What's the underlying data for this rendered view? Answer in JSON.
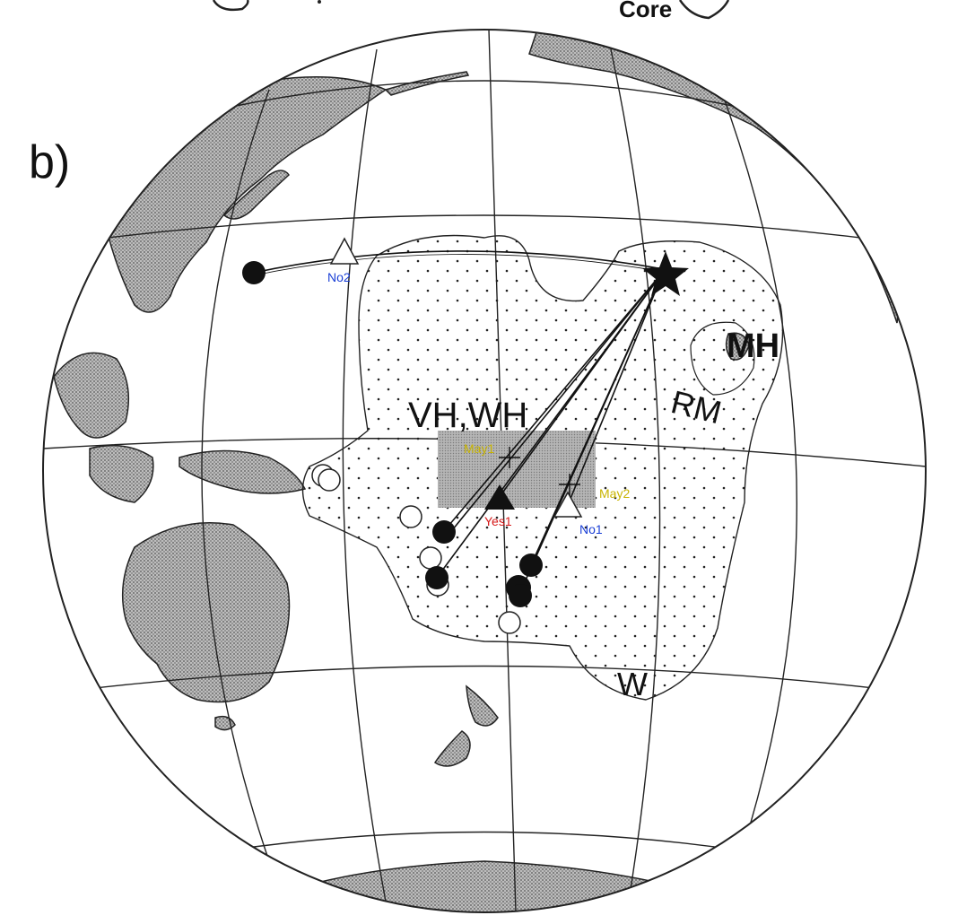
{
  "figure": {
    "panel_label": "b)",
    "top_clipped_text": "Core"
  },
  "regions": {
    "vh_wh": "VH,WH",
    "mh": "MH",
    "rm": "RM",
    "w": "W"
  },
  "markers": {
    "no1": "No1",
    "no2": "No2",
    "yes1": "Yes1",
    "may1": "May1",
    "may2": "May2"
  },
  "colors": {
    "no_label": "#1a3fd6",
    "yes_label": "#d61a1a",
    "may_label": "#c8b400",
    "land": "#9a9a9a",
    "ink": "#111111",
    "shaded_box": "#a8a8a8"
  },
  "icons": {
    "event_star": "star-icon",
    "station_filled": "filled-circle-icon",
    "station_open": "open-circle-icon",
    "station_yes": "filled-triangle-icon",
    "station_no": "open-triangle-icon",
    "station_may": "plus-icon"
  }
}
